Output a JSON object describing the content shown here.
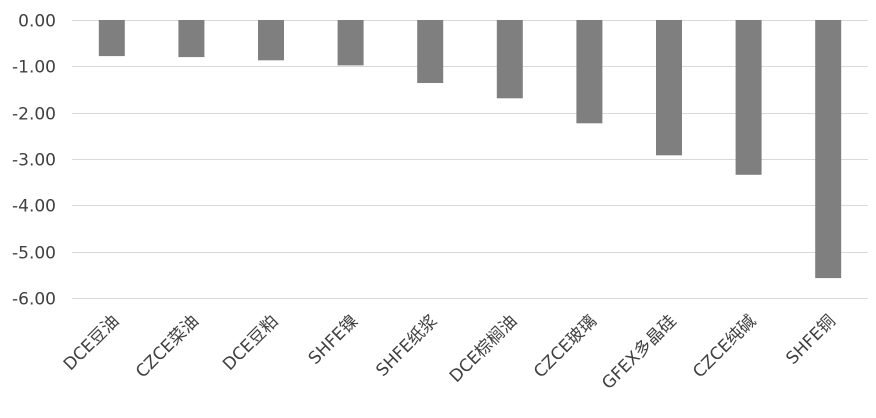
{
  "chart_data": {
    "type": "bar",
    "categories": [
      "DCE豆油",
      "CZCE菜油",
      "DCE豆粕",
      "SHFE镍",
      "SHFE纸浆",
      "DCE棕榈油",
      "CZCE玻璃",
      "GFEX多晶硅",
      "CZCE纯碱",
      "SHFE铜"
    ],
    "values": [
      -0.78,
      -0.8,
      -0.87,
      -0.98,
      -1.36,
      -1.69,
      -2.23,
      -2.92,
      -3.34,
      -5.57
    ],
    "ylim": [
      -6,
      0
    ],
    "yticks": [
      "0.00",
      "-1.00",
      "-2.00",
      "-3.00",
      "-4.00",
      "-5.00",
      "-6.00"
    ],
    "grid": true,
    "bar_color": "#7f7f7f",
    "title": "",
    "xlabel": "",
    "ylabel": ""
  }
}
